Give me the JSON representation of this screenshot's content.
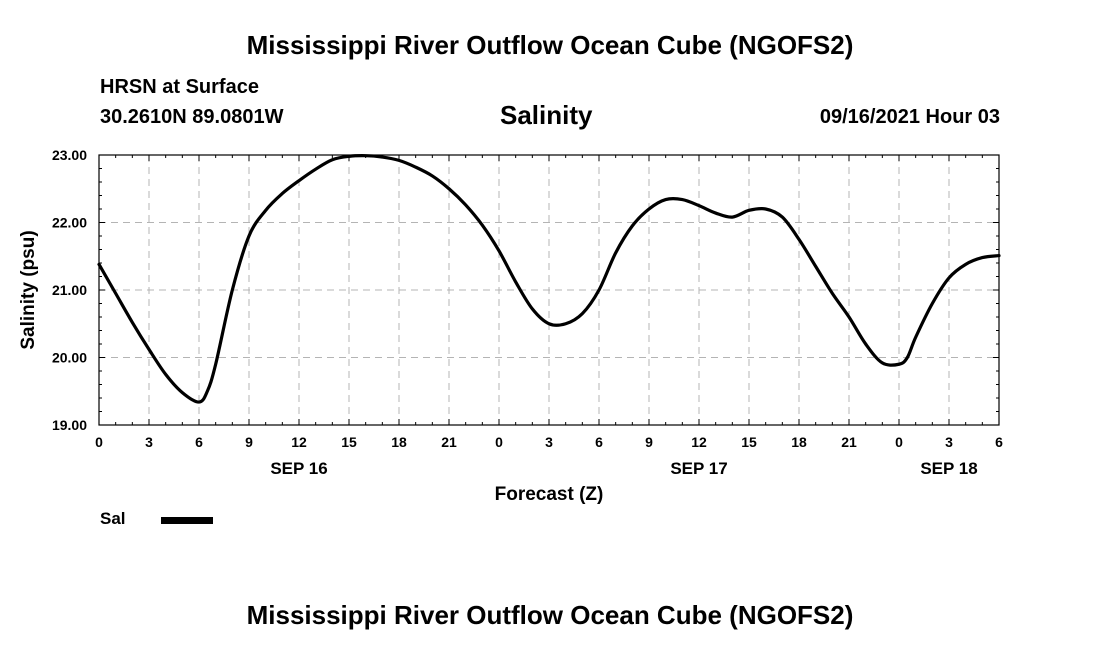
{
  "page": {
    "title_top": "Mississippi River Outflow Ocean Cube (NGOFS2)",
    "title_bottom": "Mississippi River Outflow Ocean Cube (NGOFS2)",
    "station": "HRSN at Surface",
    "coords": "30.2610N  89.0801W",
    "datetime": "09/16/2021 Hour 03"
  },
  "chart_data": {
    "type": "line",
    "title": "Salinity",
    "xlabel": "Forecast (Z)",
    "ylabel": "Salinity (psu)",
    "xlim": [
      0,
      54
    ],
    "ylim": [
      19,
      23
    ],
    "grid": true,
    "yticks": [
      19,
      20,
      21,
      22,
      23
    ],
    "ytick_labels": [
      "19.00",
      "20.00",
      "21.00",
      "22.00",
      "23.00"
    ],
    "xticks": [
      0,
      3,
      6,
      9,
      12,
      15,
      18,
      21,
      24,
      27,
      30,
      33,
      36,
      39,
      42,
      45,
      48,
      51,
      54
    ],
    "xtick_labels": [
      "0",
      "3",
      "6",
      "9",
      "12",
      "15",
      "18",
      "21",
      "0",
      "3",
      "6",
      "9",
      "12",
      "15",
      "18",
      "21",
      "0",
      "3",
      "6"
    ],
    "date_labels": [
      {
        "x": 12,
        "label": "SEP 16"
      },
      {
        "x": 36,
        "label": "SEP 17"
      },
      {
        "x": 51,
        "label": "SEP 18"
      }
    ],
    "legend": {
      "position": "bottom-left",
      "entries": [
        "Sal"
      ]
    },
    "series": [
      {
        "name": "Sal",
        "color": "#000000",
        "x": [
          0,
          1,
          2,
          3,
          4,
          5,
          6,
          6.5,
          7,
          8,
          9,
          10,
          11,
          12,
          13,
          14,
          15,
          16,
          17,
          18,
          19,
          20,
          21,
          22,
          23,
          24,
          25,
          26,
          27,
          28,
          29,
          30,
          31,
          32,
          33,
          34,
          35,
          36,
          37,
          38,
          39,
          40,
          41,
          42,
          43,
          44,
          45,
          46,
          47,
          48,
          48.5,
          49,
          50,
          51,
          52,
          53,
          54
        ],
        "y": [
          21.38,
          20.95,
          20.52,
          20.12,
          19.75,
          19.48,
          19.34,
          19.5,
          19.9,
          21.0,
          21.8,
          22.18,
          22.43,
          22.62,
          22.79,
          22.93,
          22.98,
          22.99,
          22.97,
          22.92,
          22.82,
          22.69,
          22.5,
          22.26,
          21.96,
          21.58,
          21.12,
          20.72,
          20.5,
          20.5,
          20.65,
          21.0,
          21.55,
          21.95,
          22.2,
          22.34,
          22.34,
          22.25,
          22.14,
          22.08,
          22.18,
          22.2,
          22.08,
          21.75,
          21.35,
          20.95,
          20.6,
          20.2,
          19.92,
          19.9,
          20.0,
          20.3,
          20.8,
          21.18,
          21.38,
          21.48,
          21.51
        ]
      }
    ]
  }
}
